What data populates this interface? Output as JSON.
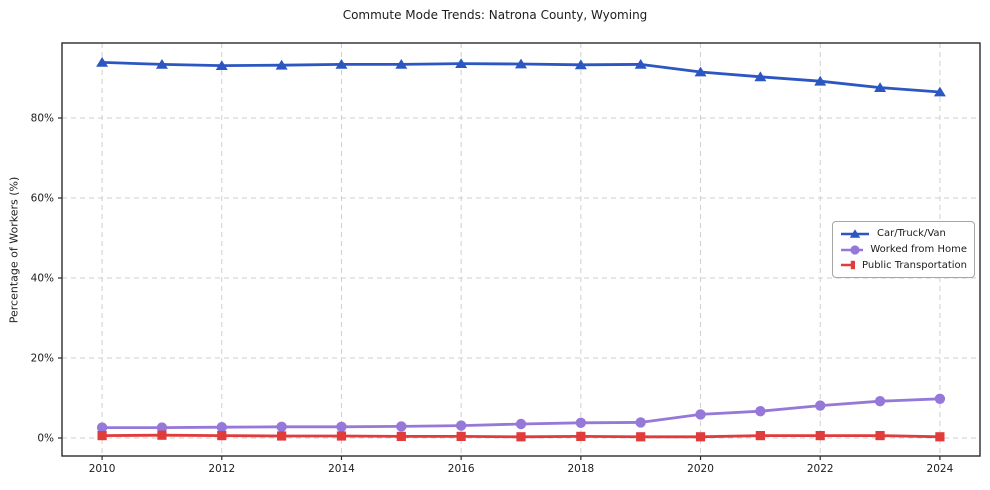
{
  "chart_data": {
    "type": "line",
    "title": "Commute Mode Trends: Natrona County, Wyoming",
    "xlabel": "",
    "ylabel": "Percentage of Workers (%)",
    "x": [
      2010,
      2011,
      2012,
      2013,
      2014,
      2015,
      2016,
      2017,
      2018,
      2019,
      2020,
      2021,
      2022,
      2023,
      2024
    ],
    "x_ticks": [
      2010,
      2012,
      2014,
      2016,
      2018,
      2020,
      2022,
      2024
    ],
    "y_ticks": [
      0,
      20,
      40,
      60,
      80
    ],
    "y_tick_labels": [
      "0%",
      "20%",
      "40%",
      "60%",
      "80%"
    ],
    "xlim": [
      2009.33,
      2024.67
    ],
    "ylim": [
      -4.5,
      98.75
    ],
    "grid": true,
    "grid_style": "dashed",
    "legend_position": "center-right",
    "series": [
      {
        "name": "Car/Truck/Van",
        "color": "#2c57c2",
        "marker": "triangle",
        "values": [
          93.9,
          93.4,
          93.1,
          93.2,
          93.4,
          93.4,
          93.6,
          93.5,
          93.3,
          93.4,
          91.5,
          90.3,
          89.2,
          87.6,
          86.5
        ]
      },
      {
        "name": "Worked from Home",
        "color": "#9678d8",
        "marker": "circle",
        "values": [
          2.6,
          2.6,
          2.7,
          2.8,
          2.8,
          2.9,
          3.1,
          3.5,
          3.8,
          3.9,
          5.9,
          6.7,
          8.1,
          9.2,
          9.8
        ]
      },
      {
        "name": "Public Transportation",
        "color": "#e13c3c",
        "marker": "square",
        "values": [
          0.6,
          0.7,
          0.6,
          0.5,
          0.5,
          0.4,
          0.4,
          0.3,
          0.4,
          0.3,
          0.3,
          0.6,
          0.6,
          0.6,
          0.3
        ]
      }
    ]
  }
}
